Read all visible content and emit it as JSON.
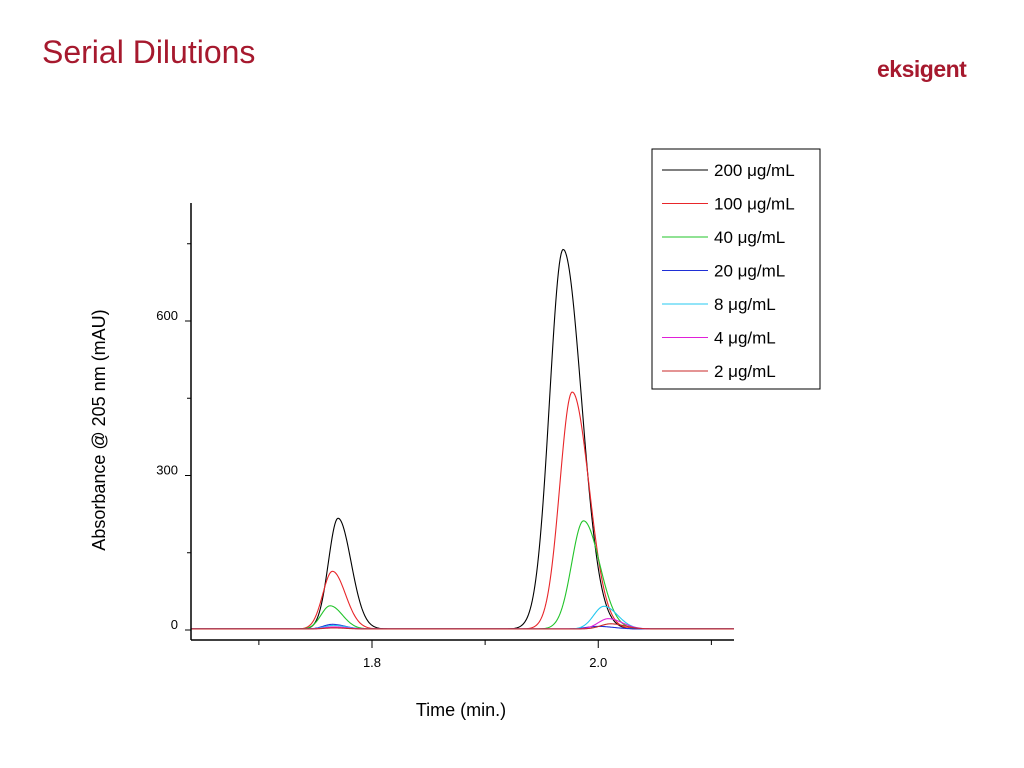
{
  "slide": {
    "title": "Serial Dilutions",
    "logo_text": "eksigent",
    "brand_color": "#a6192e"
  },
  "chart_data": {
    "type": "line",
    "xlabel": "Time (min.)",
    "ylabel": "Absorbance @ 205 nm (mAU)",
    "xlim": [
      1.64,
      2.12
    ],
    "ylim": [
      -20,
      820
    ],
    "x_ticks": [
      1.8,
      2.0
    ],
    "y_ticks": [
      0,
      300,
      600
    ],
    "legend_placement": "top-right",
    "grid": false,
    "baseline": 2,
    "series": [
      {
        "name": "200 μg/mL",
        "color": "#000000",
        "peaks": [
          {
            "x": 1.77,
            "y": 215,
            "w": 0.0085
          },
          {
            "x": 1.969,
            "y": 737,
            "w": 0.012
          }
        ]
      },
      {
        "name": "100 μg/mL",
        "color": "#e8262a",
        "peaks": [
          {
            "x": 1.765,
            "y": 112,
            "w": 0.0085
          },
          {
            "x": 1.977,
            "y": 460,
            "w": 0.011
          }
        ]
      },
      {
        "name": "40 μg/mL",
        "color": "#22c42a",
        "peaks": [
          {
            "x": 1.763,
            "y": 45,
            "w": 0.008
          },
          {
            "x": 1.987,
            "y": 210,
            "w": 0.0105
          }
        ]
      },
      {
        "name": "20 μg/mL",
        "color": "#1f2fd6",
        "peaks": [
          {
            "x": 1.765,
            "y": 9,
            "w": 0.008
          },
          {
            "x": 2.0,
            "y": 5,
            "w": 0.01
          }
        ]
      },
      {
        "name": "8 μg/mL",
        "color": "#25c8f0",
        "peaks": [
          {
            "x": 1.766,
            "y": 7,
            "w": 0.008
          },
          {
            "x": 2.005,
            "y": 44,
            "w": 0.009
          }
        ]
      },
      {
        "name": "4 μg/mL",
        "color": "#e020d8",
        "peaks": [
          {
            "x": 1.766,
            "y": 4,
            "w": 0.008
          },
          {
            "x": 2.009,
            "y": 20,
            "w": 0.009
          }
        ]
      },
      {
        "name": "2 μg/mL",
        "color": "#c8282a",
        "peaks": [
          {
            "x": 1.766,
            "y": 2,
            "w": 0.008
          },
          {
            "x": 2.011,
            "y": 10,
            "w": 0.009
          }
        ]
      }
    ]
  }
}
